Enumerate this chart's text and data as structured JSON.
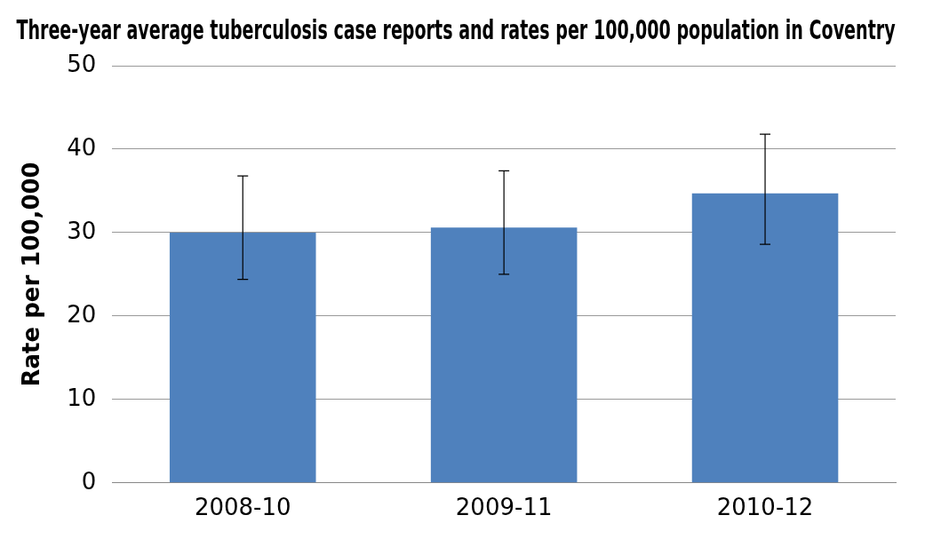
{
  "chart_data": {
    "type": "bar",
    "title": "Three-year average tuberculosis case reports and rates per 100,000 population in Coventry",
    "ylabel": "Rate per 100,000",
    "categories": [
      "2008-10",
      "2009-11",
      "2010-12"
    ],
    "values": [
      30.0,
      30.6,
      34.7
    ],
    "errors": [
      [
        24.4,
        36.8
      ],
      [
        25.0,
        37.4
      ],
      [
        28.6,
        41.8
      ]
    ],
    "color": "#4f81bd",
    "ylim": [
      0,
      50
    ],
    "yticks": [
      0,
      10,
      20,
      30,
      40,
      50
    ],
    "grid": "y"
  }
}
